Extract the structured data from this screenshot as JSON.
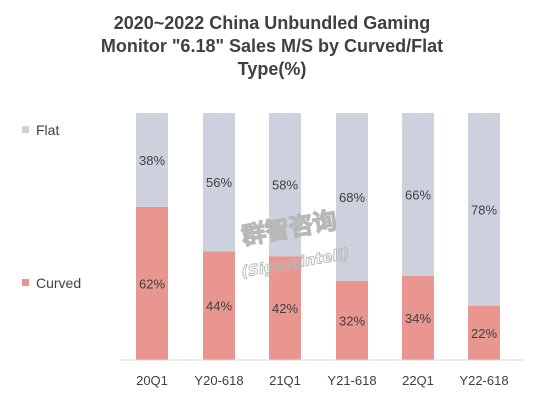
{
  "chart_data": {
    "type": "bar",
    "stacked": true,
    "title_lines": [
      "2020~2022 China Unbundled Gaming",
      "Monitor \"6.18\" Sales M/S by Curved/Flat",
      "Type(%)"
    ],
    "categories": [
      "20Q1",
      "Y20-618",
      "21Q1",
      "Y21-618",
      "22Q1",
      "Y22-618"
    ],
    "series": [
      {
        "name": "Curved",
        "values": [
          62,
          44,
          42,
          32,
          34,
          22
        ],
        "color": "#e8968f"
      },
      {
        "name": "Flat",
        "values": [
          38,
          56,
          58,
          68,
          66,
          78
        ],
        "color": "#ccd1dd"
      }
    ],
    "ylim": [
      0,
      100
    ],
    "unit": "%",
    "legend_position": "left",
    "grid": false,
    "watermark": {
      "chinese": "群智咨询",
      "english": "(Sigmaintell)"
    }
  }
}
